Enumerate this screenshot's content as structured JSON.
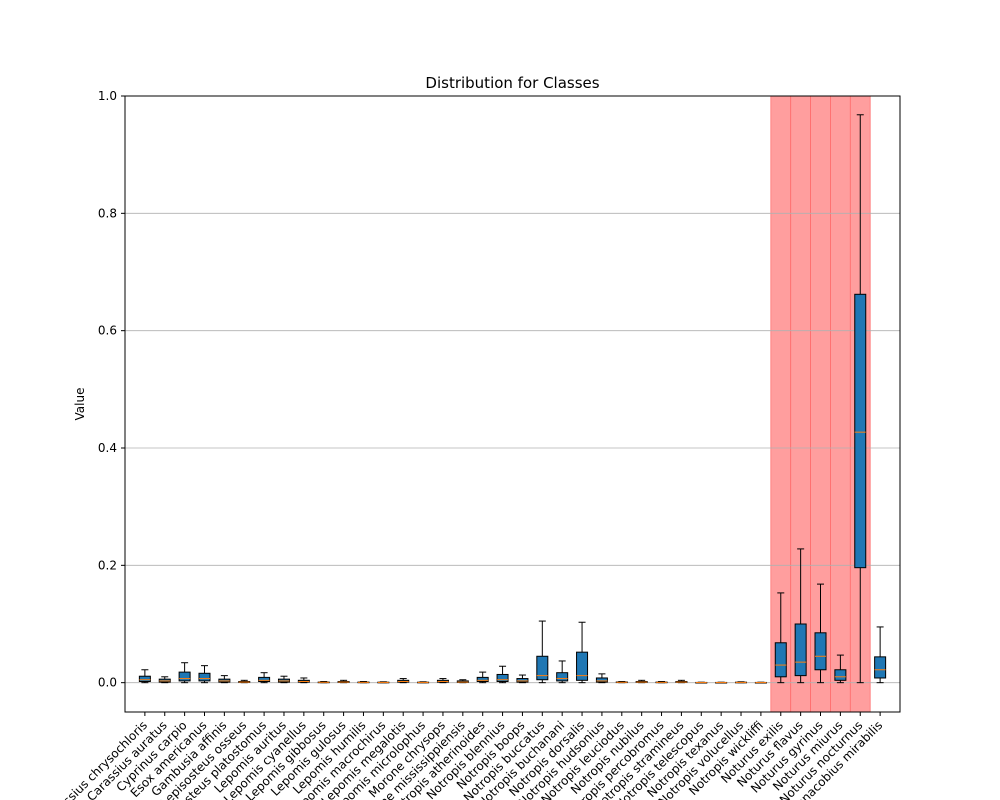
{
  "chart_data": {
    "type": "box",
    "title": "Distribution for Classes",
    "xlabel": "",
    "ylabel": "Value",
    "ylim": [
      -0.05,
      1.0
    ],
    "yticks": [
      0.0,
      0.2,
      0.4,
      0.6,
      0.8,
      1.0
    ],
    "ytick_labels": [
      "0.0",
      "0.2",
      "0.4",
      "0.6",
      "0.8",
      "1.0"
    ],
    "grid": "y",
    "colors": {
      "box": "#1f77b4",
      "median": "#ff7f0e",
      "highlight": "#ff9999",
      "grid": "#b0b0b0"
    },
    "categories": [
      "Carassius chrysochloris",
      "Carassius auratus",
      "Cyprinus carpio",
      "Esox americanus",
      "Gambusia affinis",
      "Lepisosteus osseus",
      "Lepisosteus platostomus",
      "Lepomis auritus",
      "Lepomis cyanellus",
      "Lepomis gibbosus",
      "Lepomis gulosus",
      "Lepomis humilis",
      "Lepomis macrochirus",
      "Lepomis megalotis",
      "Lepomis microlophus",
      "Morone chrysops",
      "Morone mississippiensis",
      "Notropis atherinoides",
      "Notropis blennius",
      "Notropis boops",
      "Notropis buccatus",
      "Notropis buchanani",
      "Notropis dorsalis",
      "Notropis hudsonius",
      "Notropis leuciodus",
      "Notropis nubilus",
      "Notropis percobromus",
      "Notropis stramineus",
      "Notropis telescopus",
      "Notropis texanus",
      "Notropis volucellus",
      "Notropis wickliffi",
      "Noturus exilis",
      "Noturus flavus",
      "Noturus gyrinus",
      "Noturus miurus",
      "Noturus nocturnus",
      "Phenacobius mirabilis"
    ],
    "boxes": [
      {
        "whislo": 0.0,
        "q1": 0.002,
        "med": 0.005,
        "q3": 0.011,
        "whishi": 0.022
      },
      {
        "whislo": 0.0,
        "q1": 0.001,
        "med": 0.003,
        "q3": 0.006,
        "whishi": 0.01
      },
      {
        "whislo": 0.0,
        "q1": 0.003,
        "med": 0.007,
        "q3": 0.018,
        "whishi": 0.034
      },
      {
        "whislo": 0.0,
        "q1": 0.003,
        "med": 0.007,
        "q3": 0.016,
        "whishi": 0.029
      },
      {
        "whislo": 0.0,
        "q1": 0.001,
        "med": 0.003,
        "q3": 0.006,
        "whishi": 0.012
      },
      {
        "whislo": 0.0,
        "q1": 0.0005,
        "med": 0.001,
        "q3": 0.002,
        "whishi": 0.004
      },
      {
        "whislo": 0.0,
        "q1": 0.002,
        "med": 0.004,
        "q3": 0.009,
        "whishi": 0.017
      },
      {
        "whislo": 0.0,
        "q1": 0.001,
        "med": 0.003,
        "q3": 0.006,
        "whishi": 0.011
      },
      {
        "whislo": 0.0,
        "q1": 0.001,
        "med": 0.002,
        "q3": 0.004,
        "whishi": 0.008
      },
      {
        "whislo": 0.0,
        "q1": 0.0003,
        "med": 0.0006,
        "q3": 0.001,
        "whishi": 0.002
      },
      {
        "whislo": 0.0,
        "q1": 0.0005,
        "med": 0.001,
        "q3": 0.002,
        "whishi": 0.004
      },
      {
        "whislo": 0.0,
        "q1": 0.0002,
        "med": 0.0005,
        "q3": 0.001,
        "whishi": 0.002
      },
      {
        "whislo": 0.0,
        "q1": 0.0002,
        "med": 0.0004,
        "q3": 0.0008,
        "whishi": 0.0015
      },
      {
        "whislo": 0.0,
        "q1": 0.001,
        "med": 0.002,
        "q3": 0.004,
        "whishi": 0.007
      },
      {
        "whislo": 0.0,
        "q1": 0.0002,
        "med": 0.0004,
        "q3": 0.0008,
        "whishi": 0.0015
      },
      {
        "whislo": 0.0,
        "q1": 0.001,
        "med": 0.002,
        "q3": 0.004,
        "whishi": 0.007
      },
      {
        "whislo": 0.0,
        "q1": 0.0005,
        "med": 0.001,
        "q3": 0.003,
        "whishi": 0.005
      },
      {
        "whislo": 0.0,
        "q1": 0.002,
        "med": 0.004,
        "q3": 0.009,
        "whishi": 0.018
      },
      {
        "whislo": 0.0,
        "q1": 0.002,
        "med": 0.005,
        "q3": 0.014,
        "whishi": 0.028
      },
      {
        "whislo": 0.0,
        "q1": 0.001,
        "med": 0.003,
        "q3": 0.007,
        "whishi": 0.013
      },
      {
        "whislo": 0.0,
        "q1": 0.005,
        "med": 0.012,
        "q3": 0.045,
        "whishi": 0.105
      },
      {
        "whislo": 0.0,
        "q1": 0.003,
        "med": 0.007,
        "q3": 0.017,
        "whishi": 0.037
      },
      {
        "whislo": 0.0,
        "q1": 0.004,
        "med": 0.012,
        "q3": 0.052,
        "whishi": 0.103
      },
      {
        "whislo": 0.0,
        "q1": 0.001,
        "med": 0.003,
        "q3": 0.008,
        "whishi": 0.015
      },
      {
        "whislo": 0.0,
        "q1": 0.0003,
        "med": 0.0006,
        "q3": 0.0012,
        "whishi": 0.002
      },
      {
        "whislo": 0.0,
        "q1": 0.0005,
        "med": 0.001,
        "q3": 0.002,
        "whishi": 0.004
      },
      {
        "whislo": 0.0,
        "q1": 0.0002,
        "med": 0.0005,
        "q3": 0.001,
        "whishi": 0.002
      },
      {
        "whislo": 0.0,
        "q1": 0.0005,
        "med": 0.001,
        "q3": 0.002,
        "whishi": 0.004
      },
      {
        "whislo": 0.0,
        "q1": 0.0001,
        "med": 0.0002,
        "q3": 0.0004,
        "whishi": 0.0008
      },
      {
        "whislo": 0.0,
        "q1": 0.0001,
        "med": 0.0002,
        "q3": 0.0004,
        "whishi": 0.0008
      },
      {
        "whislo": 0.0,
        "q1": 0.0002,
        "med": 0.0004,
        "q3": 0.0008,
        "whishi": 0.0015
      },
      {
        "whislo": 0.0,
        "q1": 0.0001,
        "med": 0.0002,
        "q3": 0.0004,
        "whishi": 0.0008
      },
      {
        "whislo": 0.0,
        "q1": 0.01,
        "med": 0.03,
        "q3": 0.068,
        "whishi": 0.153
      },
      {
        "whislo": 0.0,
        "q1": 0.012,
        "med": 0.035,
        "q3": 0.1,
        "whishi": 0.228
      },
      {
        "whislo": 0.0,
        "q1": 0.022,
        "med": 0.045,
        "q3": 0.085,
        "whishi": 0.168
      },
      {
        "whislo": 0.0,
        "q1": 0.004,
        "med": 0.01,
        "q3": 0.022,
        "whishi": 0.047
      },
      {
        "whislo": 0.0,
        "q1": 0.196,
        "med": 0.427,
        "q3": 0.662,
        "whishi": 0.968
      },
      {
        "whislo": 0.0,
        "q1": 0.008,
        "med": 0.022,
        "q3": 0.044,
        "whishi": 0.095
      }
    ],
    "highlighted_categories": [
      "Noturus exilis",
      "Noturus flavus",
      "Noturus gyrinus",
      "Noturus miurus",
      "Noturus nocturnus"
    ]
  }
}
